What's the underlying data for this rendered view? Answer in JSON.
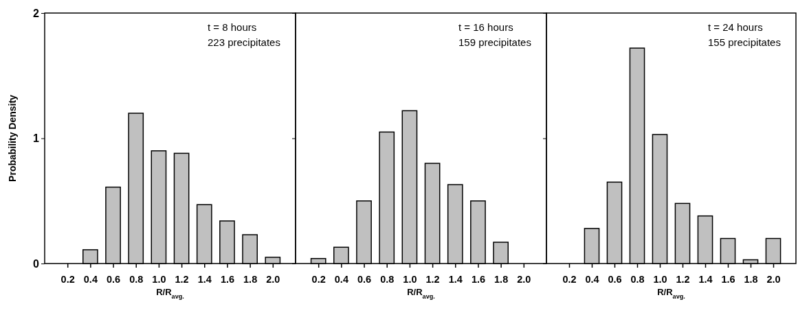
{
  "chart_data": [
    {
      "type": "bar",
      "categories": [
        "0.2",
        "0.4",
        "0.6",
        "0.8",
        "1.0",
        "1.2",
        "1.4",
        "1.6",
        "1.8",
        "2.0"
      ],
      "values": [
        0,
        0.11,
        0.61,
        1.2,
        0.9,
        0.88,
        0.47,
        0.34,
        0.23,
        0.05
      ],
      "color": "#c0c0c0",
      "ylim": [
        0,
        2
      ],
      "yticks": [
        0,
        1,
        2
      ],
      "xlabel": "R/R$_{avg.}$",
      "ylabel": "Probability Density",
      "annotations": [
        "t = 8 hours",
        "223 precipitates"
      ]
    },
    {
      "type": "bar",
      "categories": [
        "0.2",
        "0.4",
        "0.6",
        "0.8",
        "1.0",
        "1.2",
        "1.4",
        "1.6",
        "1.8",
        "2.0"
      ],
      "values": [
        0.04,
        0.13,
        0.5,
        1.05,
        1.22,
        0.8,
        0.63,
        0.5,
        0.17,
        0
      ],
      "color": "#c0c0c0",
      "ylim": [
        0,
        2
      ],
      "yticks": [
        0,
        1,
        2
      ],
      "tick_labels": "x",
      "xlabel": "R/R$_{avg.}$",
      "annotations": [
        "t = 16  hours",
        "159 precipitates"
      ]
    },
    {
      "type": "bar",
      "categories": [
        "0.2",
        "0.4",
        "0.6",
        "0.8",
        "1.0",
        "1.2",
        "1.4",
        "1.6",
        "1.8",
        "2.0"
      ],
      "values": [
        0,
        0.28,
        0.65,
        1.72,
        1.03,
        0.48,
        0.38,
        0.2,
        0.03,
        0.2
      ],
      "color": "#c0c0c0",
      "ylim": [
        0,
        2
      ],
      "yticks": [
        0,
        1,
        2
      ],
      "tick_labels": "x",
      "xlabel": "R/R$_{avg.}$",
      "annotations": [
        "t = 24  hours",
        "155 precipitates"
      ]
    }
  ]
}
